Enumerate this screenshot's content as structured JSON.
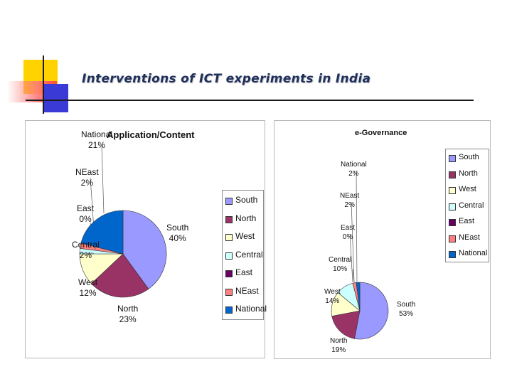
{
  "slide": {
    "title": "Interventions of ICT experiments in India"
  },
  "chart_data": [
    {
      "type": "pie",
      "title": "Application/Content",
      "categories": [
        "South",
        "North",
        "West",
        "Central",
        "East",
        "NEast",
        "National"
      ],
      "values": [
        40,
        23,
        12,
        2,
        0,
        2,
        21
      ],
      "value_labels": [
        "40%",
        "23%",
        "12%",
        "2%",
        "0%",
        "2%",
        "21%"
      ],
      "colors": [
        "#9999ff",
        "#993366",
        "#ffffcc",
        "#ccffff",
        "#660066",
        "#ff8080",
        "#0066cc"
      ],
      "legend_position": "right"
    },
    {
      "type": "pie",
      "title": "e-Governance",
      "categories": [
        "South",
        "North",
        "West",
        "Central",
        "East",
        "NEast",
        "National"
      ],
      "values": [
        53,
        19,
        14,
        10,
        0,
        2,
        2
      ],
      "value_labels": [
        "53%",
        "19%",
        "14%",
        "10%",
        "0%",
        "2%",
        "2%"
      ],
      "colors": [
        "#9999ff",
        "#993366",
        "#ffffcc",
        "#ccffff",
        "#660066",
        "#ff8080",
        "#0066cc"
      ],
      "legend_position": "right"
    }
  ]
}
